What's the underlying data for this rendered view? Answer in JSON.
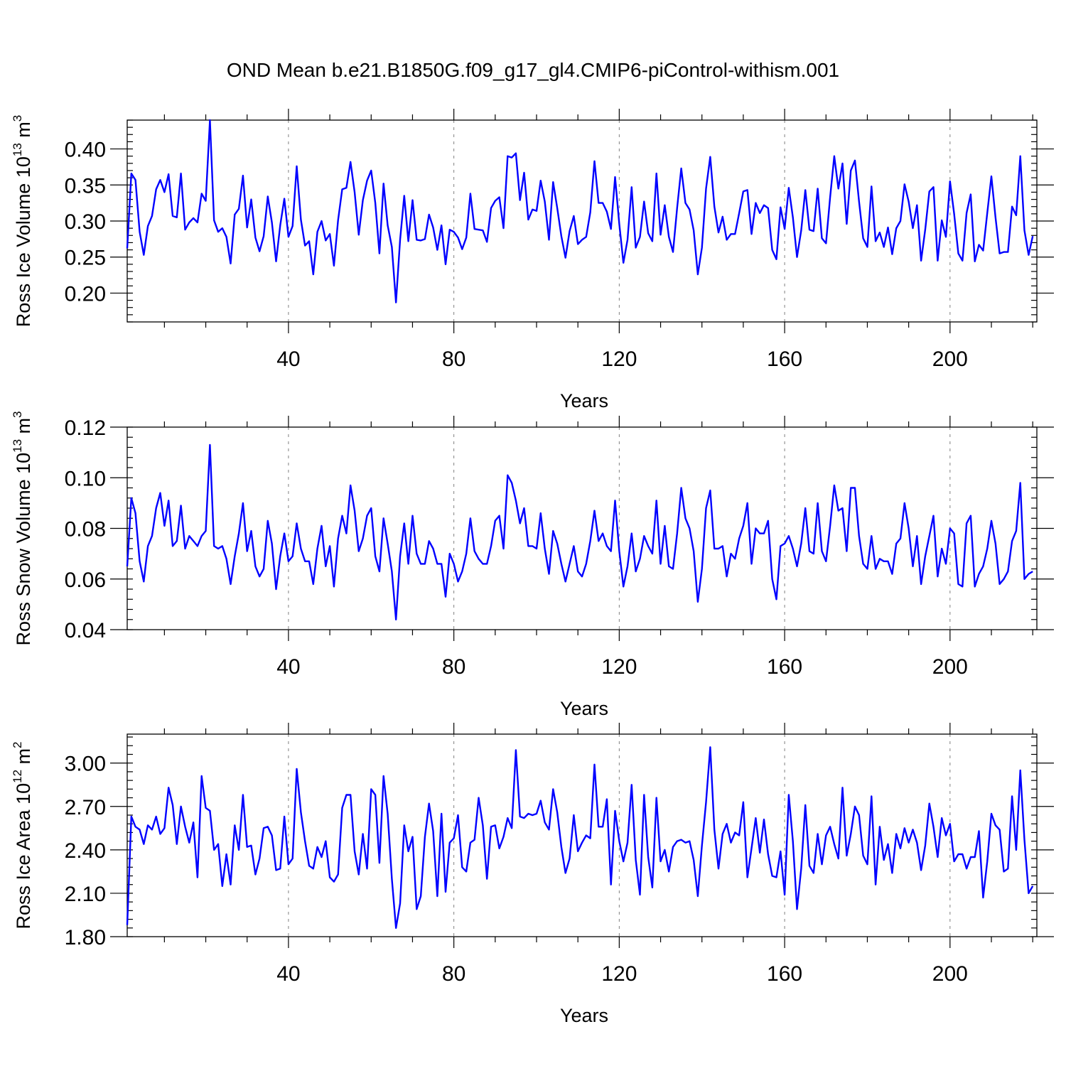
{
  "title": "OND Mean b.e21.B1850G.f09_g17_gl4.CMIP6-piControl-withism.001",
  "colors": {
    "series": "#0000ff",
    "axis": "#000000",
    "grid": "#808080"
  },
  "chart_data": [
    {
      "type": "line",
      "ylabel_text": "Ross Ice Volume 10",
      "ylabel_exp": "13",
      "ylabel_unit": " m",
      "ylabel_unit_exp": "3",
      "xlabel": "Years",
      "xlim": [
        1,
        221
      ],
      "ylim": [
        0.16,
        0.44
      ],
      "xticks": [
        40,
        80,
        120,
        160,
        200
      ],
      "xtick_labels": [
        "40",
        "80",
        "120",
        "160",
        "200"
      ],
      "yticks": [
        0.2,
        0.25,
        0.3,
        0.35,
        0.4
      ],
      "ytick_labels": [
        "0.20",
        "0.25",
        "0.30",
        "0.35",
        "0.40"
      ],
      "grid": "vertical dashed at major x ticks",
      "series": [
        {
          "x_start": 1,
          "values": [
            0.262,
            0.366,
            0.357,
            0.285,
            0.253,
            0.293,
            0.307,
            0.344,
            0.357,
            0.34,
            0.365,
            0.307,
            0.305,
            0.366,
            0.288,
            0.298,
            0.304,
            0.298,
            0.338,
            0.328,
            0.44,
            0.301,
            0.285,
            0.29,
            0.278,
            0.241,
            0.309,
            0.317,
            0.363,
            0.291,
            0.33,
            0.277,
            0.258,
            0.279,
            0.334,
            0.298,
            0.244,
            0.294,
            0.331,
            0.278,
            0.293,
            0.376,
            0.302,
            0.266,
            0.272,
            0.226,
            0.285,
            0.3,
            0.273,
            0.282,
            0.238,
            0.301,
            0.344,
            0.346,
            0.382,
            0.34,
            0.281,
            0.329,
            0.356,
            0.37,
            0.325,
            0.255,
            0.352,
            0.294,
            0.264,
            0.187,
            0.274,
            0.335,
            0.272,
            0.329,
            0.274,
            0.273,
            0.275,
            0.309,
            0.291,
            0.26,
            0.294,
            0.24,
            0.288,
            0.285,
            0.277,
            0.261,
            0.277,
            0.338,
            0.289,
            0.288,
            0.287,
            0.271,
            0.318,
            0.328,
            0.333,
            0.29,
            0.39,
            0.388,
            0.394,
            0.329,
            0.367,
            0.302,
            0.316,
            0.314,
            0.356,
            0.327,
            0.274,
            0.354,
            0.318,
            0.279,
            0.249,
            0.286,
            0.307,
            0.268,
            0.274,
            0.278,
            0.312,
            0.383,
            0.325,
            0.325,
            0.313,
            0.289,
            0.361,
            0.296,
            0.242,
            0.274,
            0.347,
            0.263,
            0.278,
            0.327,
            0.283,
            0.272,
            0.366,
            0.281,
            0.322,
            0.278,
            0.257,
            0.318,
            0.373,
            0.325,
            0.316,
            0.287,
            0.226,
            0.263,
            0.345,
            0.389,
            0.32,
            0.284,
            0.306,
            0.274,
            0.282,
            0.282,
            0.311,
            0.341,
            0.343,
            0.282,
            0.325,
            0.311,
            0.322,
            0.318,
            0.26,
            0.247,
            0.319,
            0.289,
            0.346,
            0.305,
            0.25,
            0.287,
            0.343,
            0.288,
            0.286,
            0.345,
            0.276,
            0.269,
            0.333,
            0.39,
            0.345,
            0.38,
            0.296,
            0.37,
            0.384,
            0.327,
            0.276,
            0.264,
            0.348,
            0.272,
            0.284,
            0.264,
            0.291,
            0.254,
            0.29,
            0.3,
            0.351,
            0.327,
            0.29,
            0.322,
            0.245,
            0.288,
            0.341,
            0.347,
            0.245,
            0.301,
            0.278,
            0.355,
            0.31,
            0.255,
            0.245,
            0.311,
            0.337,
            0.244,
            0.267,
            0.259,
            0.311,
            0.362,
            0.305,
            0.255,
            0.257,
            0.257,
            0.32,
            0.308,
            0.39,
            0.287,
            0.253,
            0.279
          ]
        }
      ]
    },
    {
      "type": "line",
      "ylabel_text": "Ross Snow Volume 10",
      "ylabel_exp": "13",
      "ylabel_unit": " m",
      "ylabel_unit_exp": "3",
      "xlabel": "Years",
      "xlim": [
        1,
        221
      ],
      "ylim": [
        0.04,
        0.12
      ],
      "xticks": [
        40,
        80,
        120,
        160,
        200
      ],
      "xtick_labels": [
        "40",
        "80",
        "120",
        "160",
        "200"
      ],
      "yticks": [
        0.04,
        0.06,
        0.08,
        0.1,
        0.12
      ],
      "ytick_labels": [
        "0.04",
        "0.06",
        "0.08",
        "0.10",
        "0.12"
      ],
      "grid": "vertical dashed at major x ticks",
      "series": [
        {
          "x_start": 1,
          "values": [
            0.065,
            0.092,
            0.086,
            0.067,
            0.059,
            0.073,
            0.077,
            0.088,
            0.094,
            0.081,
            0.091,
            0.073,
            0.075,
            0.089,
            0.072,
            0.077,
            0.075,
            0.073,
            0.077,
            0.079,
            0.113,
            0.073,
            0.072,
            0.073,
            0.068,
            0.058,
            0.069,
            0.078,
            0.09,
            0.071,
            0.079,
            0.065,
            0.061,
            0.064,
            0.083,
            0.074,
            0.056,
            0.069,
            0.078,
            0.067,
            0.069,
            0.082,
            0.072,
            0.067,
            0.067,
            0.058,
            0.072,
            0.081,
            0.065,
            0.073,
            0.057,
            0.076,
            0.085,
            0.078,
            0.097,
            0.087,
            0.071,
            0.076,
            0.085,
            0.088,
            0.069,
            0.063,
            0.084,
            0.074,
            0.063,
            0.044,
            0.069,
            0.082,
            0.066,
            0.085,
            0.07,
            0.066,
            0.066,
            0.075,
            0.072,
            0.066,
            0.066,
            0.053,
            0.07,
            0.066,
            0.059,
            0.063,
            0.07,
            0.084,
            0.071,
            0.068,
            0.066,
            0.066,
            0.073,
            0.083,
            0.085,
            0.072,
            0.101,
            0.098,
            0.091,
            0.082,
            0.088,
            0.073,
            0.073,
            0.072,
            0.086,
            0.072,
            0.062,
            0.079,
            0.074,
            0.066,
            0.059,
            0.066,
            0.073,
            0.063,
            0.061,
            0.066,
            0.075,
            0.087,
            0.075,
            0.078,
            0.073,
            0.071,
            0.091,
            0.071,
            0.057,
            0.065,
            0.078,
            0.063,
            0.068,
            0.077,
            0.073,
            0.07,
            0.091,
            0.066,
            0.081,
            0.065,
            0.064,
            0.078,
            0.096,
            0.084,
            0.08,
            0.071,
            0.051,
            0.064,
            0.088,
            0.095,
            0.072,
            0.072,
            0.073,
            0.061,
            0.07,
            0.068,
            0.076,
            0.081,
            0.09,
            0.066,
            0.08,
            0.078,
            0.078,
            0.083,
            0.06,
            0.052,
            0.073,
            0.074,
            0.077,
            0.072,
            0.065,
            0.074,
            0.088,
            0.071,
            0.07,
            0.09,
            0.071,
            0.067,
            0.081,
            0.097,
            0.087,
            0.088,
            0.071,
            0.096,
            0.096,
            0.077,
            0.066,
            0.064,
            0.077,
            0.064,
            0.068,
            0.067,
            0.067,
            0.062,
            0.074,
            0.076,
            0.09,
            0.08,
            0.065,
            0.077,
            0.058,
            0.069,
            0.077,
            0.085,
            0.061,
            0.072,
            0.066,
            0.08,
            0.078,
            0.058,
            0.057,
            0.082,
            0.085,
            0.057,
            0.062,
            0.065,
            0.072,
            0.083,
            0.074,
            0.058,
            0.06,
            0.063,
            0.075,
            0.079,
            0.098,
            0.06,
            0.062,
            0.063
          ]
        }
      ]
    },
    {
      "type": "line",
      "ylabel_text": "Ross Ice Area 10",
      "ylabel_exp": "12",
      "ylabel_unit": " m",
      "ylabel_unit_exp": "2",
      "xlabel": "Years",
      "xlim": [
        1,
        221
      ],
      "ylim": [
        1.8,
        3.2
      ],
      "xticks": [
        40,
        80,
        120,
        160,
        200
      ],
      "xtick_labels": [
        "40",
        "80",
        "120",
        "160",
        "200"
      ],
      "yticks": [
        1.8,
        2.1,
        2.4,
        2.7,
        3.0
      ],
      "ytick_labels": [
        "1.80",
        "2.10",
        "2.40",
        "2.70",
        "3.00"
      ],
      "grid": "vertical dashed at major x ticks",
      "series": [
        {
          "x_start": 1,
          "values": [
            1.88,
            2.63,
            2.56,
            2.54,
            2.44,
            2.57,
            2.54,
            2.63,
            2.51,
            2.55,
            2.83,
            2.71,
            2.44,
            2.7,
            2.56,
            2.45,
            2.59,
            2.21,
            2.91,
            2.69,
            2.67,
            2.4,
            2.44,
            2.15,
            2.37,
            2.16,
            2.57,
            2.4,
            2.78,
            2.42,
            2.43,
            2.23,
            2.34,
            2.55,
            2.56,
            2.5,
            2.26,
            2.27,
            2.63,
            2.3,
            2.34,
            2.96,
            2.66,
            2.46,
            2.29,
            2.27,
            2.42,
            2.35,
            2.46,
            2.21,
            2.18,
            2.23,
            2.69,
            2.78,
            2.78,
            2.39,
            2.23,
            2.51,
            2.27,
            2.82,
            2.78,
            2.31,
            2.91,
            2.65,
            2.2,
            1.86,
            2.03,
            2.57,
            2.39,
            2.49,
            1.99,
            2.08,
            2.49,
            2.72,
            2.53,
            2.08,
            2.65,
            2.11,
            2.45,
            2.48,
            2.64,
            2.28,
            2.25,
            2.45,
            2.47,
            2.76,
            2.57,
            2.2,
            2.56,
            2.57,
            2.41,
            2.49,
            2.62,
            2.55,
            3.09,
            2.63,
            2.62,
            2.65,
            2.64,
            2.65,
            2.74,
            2.59,
            2.54,
            2.82,
            2.66,
            2.42,
            2.24,
            2.34,
            2.64,
            2.39,
            2.45,
            2.5,
            2.48,
            2.99,
            2.56,
            2.56,
            2.75,
            2.16,
            2.67,
            2.46,
            2.32,
            2.45,
            2.85,
            2.33,
            2.09,
            2.78,
            2.35,
            2.14,
            2.76,
            2.32,
            2.4,
            2.25,
            2.42,
            2.46,
            2.47,
            2.45,
            2.46,
            2.33,
            2.08,
            2.43,
            2.73,
            3.11,
            2.54,
            2.27,
            2.51,
            2.58,
            2.45,
            2.52,
            2.5,
            2.73,
            2.21,
            2.41,
            2.62,
            2.38,
            2.61,
            2.37,
            2.22,
            2.21,
            2.39,
            2.09,
            2.78,
            2.46,
            1.99,
            2.27,
            2.71,
            2.29,
            2.24,
            2.51,
            2.3,
            2.5,
            2.56,
            2.44,
            2.34,
            2.83,
            2.36,
            2.51,
            2.7,
            2.64,
            2.36,
            2.3,
            2.77,
            2.16,
            2.56,
            2.33,
            2.44,
            2.24,
            2.51,
            2.41,
            2.55,
            2.45,
            2.54,
            2.45,
            2.26,
            2.43,
            2.72,
            2.56,
            2.35,
            2.62,
            2.5,
            2.58,
            2.32,
            2.37,
            2.37,
            2.27,
            2.35,
            2.35,
            2.53,
            2.07,
            2.32,
            2.65,
            2.57,
            2.54,
            2.25,
            2.27,
            2.77,
            2.4,
            2.95,
            2.47,
            2.1,
            2.15
          ]
        }
      ]
    }
  ]
}
